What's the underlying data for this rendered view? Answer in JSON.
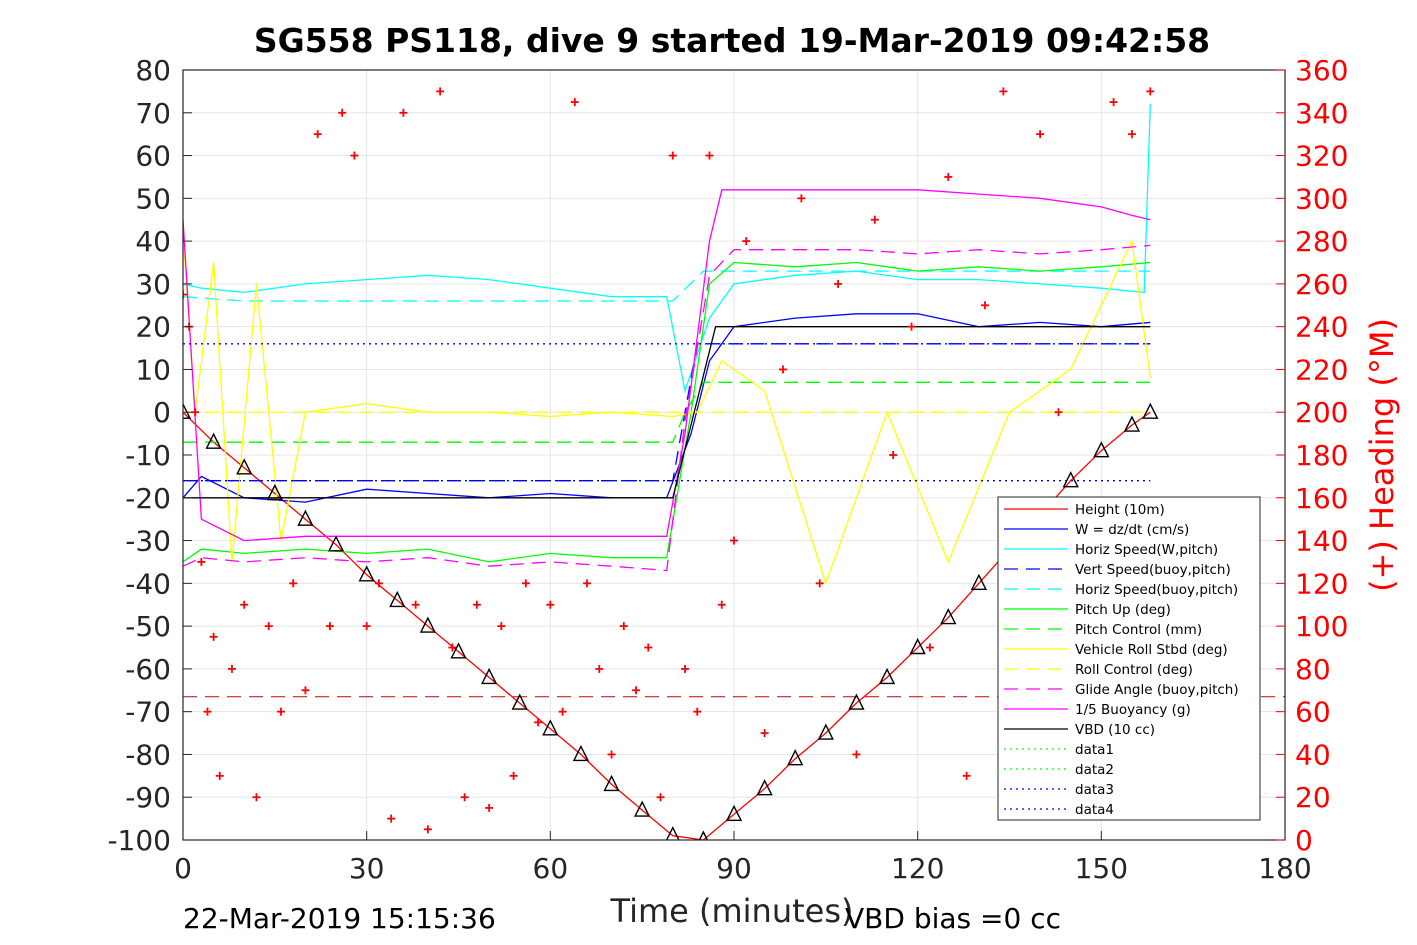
{
  "chart_data": {
    "type": "line",
    "title": "SG558 PS118, dive 9 started 19-Mar-2019 09:42:58",
    "xlabel": "Time (minutes)",
    "ylabel_right": "(+) Heading (°M)",
    "xlim": [
      0,
      180
    ],
    "ylim": [
      -100,
      80
    ],
    "ylim_right": [
      0,
      360
    ],
    "xticks": [
      "0",
      "30",
      "60",
      "90",
      "120",
      "150",
      "180"
    ],
    "yticks_left": [
      "80",
      "70",
      "60",
      "50",
      "40",
      "30",
      "20",
      "10",
      "0",
      "-10",
      "-20",
      "-30",
      "-40",
      "-50",
      "-60",
      "-70",
      "-80",
      "-90",
      "-100"
    ],
    "yticks_right": [
      "360",
      "340",
      "320",
      "300",
      "280",
      "260",
      "240",
      "220",
      "200",
      "180",
      "160",
      "140",
      "120",
      "100",
      "80",
      "60",
      "40",
      "20",
      "0"
    ],
    "grid": true,
    "legend_position": "bottom-right",
    "footer_left": "22-Mar-2019 15:15:36",
    "footer_right": "VBD bias =0 cc",
    "series": [
      {
        "name": "Height (10m)",
        "color": "#ff0000",
        "style": "solid",
        "marker": "triangle",
        "x": [
          0,
          5,
          10,
          15,
          20,
          25,
          30,
          35,
          40,
          45,
          50,
          55,
          60,
          65,
          70,
          75,
          80,
          85,
          90,
          95,
          100,
          105,
          110,
          115,
          120,
          125,
          130,
          135,
          140,
          145,
          150,
          155,
          158
        ],
        "y": [
          0,
          -7,
          -13,
          -19,
          -25,
          -31,
          -38,
          -44,
          -50,
          -56,
          -62,
          -68,
          -74,
          -80,
          -87,
          -93,
          -99,
          -100,
          -94,
          -88,
          -81,
          -75,
          -68,
          -62,
          -55,
          -48,
          -40,
          -32,
          -24,
          -16,
          -9,
          -3,
          0
        ]
      },
      {
        "name": "W = dz/dt (cm/s)",
        "color": "#0000ff",
        "style": "solid",
        "x": [
          0,
          3,
          10,
          20,
          30,
          40,
          50,
          60,
          70,
          79,
          83,
          86,
          90,
          100,
          110,
          120,
          130,
          140,
          150,
          158
        ],
        "y": [
          -20,
          -15,
          -20,
          -21,
          -18,
          -19,
          -20,
          -19,
          -20,
          -20,
          -5,
          12,
          20,
          22,
          23,
          23,
          20,
          21,
          20,
          21
        ]
      },
      {
        "name": "Horiz Speed(W,pitch)",
        "color": "#00ffff",
        "style": "solid",
        "x": [
          0,
          3,
          10,
          20,
          30,
          40,
          50,
          60,
          70,
          79,
          82,
          86,
          90,
          100,
          110,
          120,
          130,
          140,
          150,
          157,
          158
        ],
        "y": [
          30,
          29,
          28,
          30,
          31,
          32,
          31,
          29,
          27,
          27,
          5,
          22,
          30,
          32,
          33,
          31,
          31,
          30,
          29,
          28,
          72
        ]
      },
      {
        "name": "Vert Speed(buoy,pitch)",
        "color": "#0000ff",
        "style": "dashed",
        "x": [
          0,
          3,
          80,
          84,
          158
        ],
        "y": [
          -16,
          -16,
          -16,
          16,
          16
        ]
      },
      {
        "name": "Horiz Speed(buoy,pitch)",
        "color": "#00ffff",
        "style": "dashed",
        "x": [
          0,
          10,
          80,
          85,
          158
        ],
        "y": [
          27,
          26,
          26,
          33,
          33
        ]
      },
      {
        "name": "Pitch Up (deg)",
        "color": "#00ff00",
        "style": "solid",
        "x": [
          0,
          3,
          10,
          20,
          30,
          40,
          50,
          60,
          70,
          79,
          83,
          86,
          90,
          100,
          110,
          120,
          130,
          140,
          150,
          158
        ],
        "y": [
          -35,
          -32,
          -33,
          -32,
          -33,
          -32,
          -35,
          -33,
          -34,
          -34,
          0,
          30,
          35,
          34,
          35,
          33,
          34,
          33,
          34,
          35
        ]
      },
      {
        "name": "Pitch Control (mm)",
        "color": "#00ff00",
        "style": "dashed",
        "x": [
          0,
          10,
          80,
          82,
          85,
          158
        ],
        "y": [
          -7,
          -7,
          -7,
          0,
          7,
          7
        ]
      },
      {
        "name": "Vehicle Roll Stbd (deg)",
        "color": "#ffff00",
        "style": "solid",
        "x": [
          0,
          2,
          5,
          8,
          12,
          16,
          20,
          30,
          40,
          50,
          60,
          70,
          80,
          84,
          88,
          95,
          105,
          115,
          125,
          135,
          145,
          155,
          158
        ],
        "y": [
          42,
          0,
          35,
          -35,
          30,
          -30,
          0,
          2,
          0,
          0,
          -1,
          0,
          -1,
          0,
          12,
          5,
          -40,
          0,
          -35,
          0,
          10,
          40,
          8
        ]
      },
      {
        "name": "Roll Control (deg)",
        "color": "#ffff00",
        "style": "dashed",
        "x": [
          0,
          80,
          84,
          158
        ],
        "y": [
          0,
          0,
          0,
          0
        ]
      },
      {
        "name": "Glide Angle (buoy,pitch)",
        "color": "#ff00ff",
        "style": "dashed",
        "x": [
          0,
          3,
          10,
          20,
          30,
          40,
          50,
          60,
          70,
          79,
          82,
          86,
          90,
          100,
          110,
          120,
          130,
          140,
          150,
          158
        ],
        "y": [
          -36,
          -34,
          -35,
          -34,
          -35,
          -34,
          -36,
          -35,
          -36,
          -37,
          -2,
          32,
          38,
          38,
          38,
          37,
          38,
          37,
          38,
          39
        ]
      },
      {
        "name": "1/5 Buoyancy (g)",
        "color": "#ff00ff",
        "style": "solid",
        "x": [
          0,
          3,
          10,
          20,
          30,
          40,
          50,
          60,
          70,
          79,
          82,
          86,
          88,
          100,
          110,
          120,
          130,
          140,
          150,
          155,
          158
        ],
        "y": [
          45,
          -25,
          -30,
          -29,
          -29,
          -29,
          -29,
          -29,
          -29,
          -29,
          -5,
          40,
          52,
          52,
          52,
          52,
          51,
          50,
          48,
          46,
          45
        ]
      },
      {
        "name": "VBD (10 cc)",
        "color": "#000000",
        "style": "solid",
        "x": [
          0,
          3,
          80,
          87,
          158
        ],
        "y": [
          -20,
          -20,
          -20,
          20,
          20
        ]
      },
      {
        "name": "data1",
        "color": "#00ff00",
        "style": "dotted",
        "x": [],
        "y": []
      },
      {
        "name": "data2",
        "color": "#00ff00",
        "style": "dotted",
        "x": [],
        "y": []
      },
      {
        "name": "data3",
        "color": "#0000ff",
        "style": "dotted",
        "x": [
          0,
          158
        ],
        "y": [
          16,
          16
        ]
      },
      {
        "name": "data4",
        "color": "#0000ff",
        "style": "dotted",
        "x": [
          0,
          158
        ],
        "y": [
          -16,
          -16
        ]
      }
    ],
    "reference_lines": [
      {
        "color": "#cc0000",
        "style": "dashed",
        "y": -66.5
      }
    ],
    "heading_series": {
      "color": "#ff0000",
      "marker": "+",
      "axis": "right",
      "x": [
        0,
        1,
        2,
        3,
        4,
        5,
        6,
        8,
        10,
        12,
        14,
        16,
        18,
        20,
        22,
        24,
        26,
        28,
        30,
        32,
        34,
        36,
        38,
        40,
        42,
        44,
        46,
        48,
        50,
        52,
        54,
        56,
        58,
        60,
        62,
        64,
        66,
        68,
        70,
        72,
        74,
        76,
        78,
        80,
        82,
        84,
        86,
        88,
        90,
        92,
        95,
        98,
        101,
        104,
        107,
        110,
        113,
        116,
        119,
        122,
        125,
        128,
        131,
        134,
        137,
        140,
        143,
        146,
        149,
        152,
        155,
        158
      ],
      "y": [
        255,
        240,
        200,
        130,
        60,
        95,
        30,
        80,
        110,
        20,
        100,
        60,
        120,
        70,
        330,
        100,
        340,
        320,
        100,
        120,
        10,
        340,
        110,
        5,
        350,
        90,
        20,
        110,
        15,
        100,
        30,
        120,
        55,
        110,
        60,
        345,
        120,
        80,
        40,
        100,
        70,
        90,
        20,
        320,
        80,
        60,
        320,
        110,
        140,
        280,
        50,
        220,
        300,
        120,
        260,
        40,
        290,
        180,
        240,
        90,
        310,
        30,
        250,
        350,
        60,
        330,
        200,
        100,
        20,
        345,
        330,
        350
      ]
    }
  }
}
